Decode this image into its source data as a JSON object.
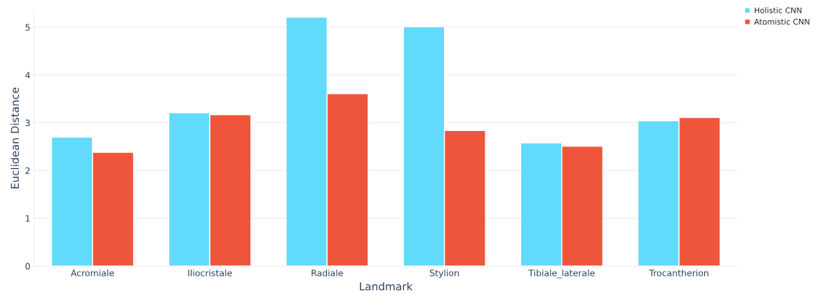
{
  "chart_data": {
    "type": "bar",
    "xlabel": "Landmark",
    "ylabel": "Euclidean Distance",
    "categories": [
      "Acromiale",
      "Iliocristale",
      "Radiale",
      "Stylion",
      "Tibiale_laterale",
      "Trocantherion"
    ],
    "series": [
      {
        "name": "Holistic CNN",
        "color": "#61dafb",
        "values": [
          2.7,
          3.21,
          5.21,
          5.01,
          2.58,
          3.04
        ]
      },
      {
        "name": "Atomistic CNN",
        "color": "#ef553b",
        "values": [
          2.38,
          3.17,
          3.61,
          2.84,
          2.51,
          3.11
        ]
      }
    ],
    "ylim": [
      0,
      5.35
    ],
    "yticks": [
      0,
      1,
      2,
      3,
      4,
      5
    ],
    "grid": "y",
    "legend": "top right"
  }
}
